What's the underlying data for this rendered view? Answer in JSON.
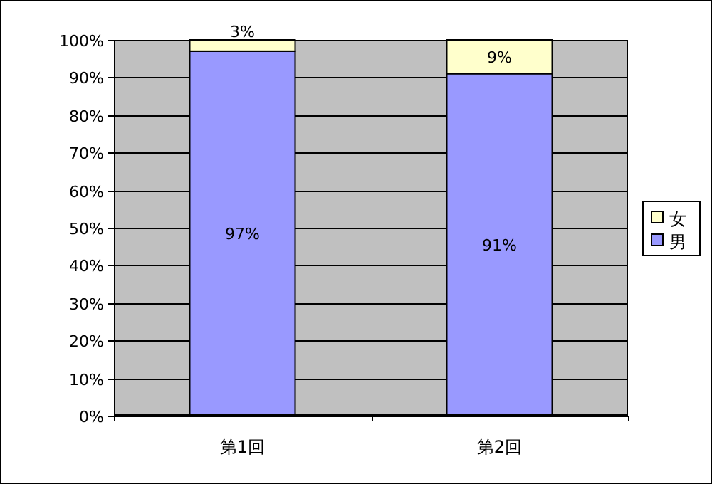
{
  "chart_data": {
    "type": "bar",
    "stacked": true,
    "categories": [
      "第1回",
      "第2回"
    ],
    "series": [
      {
        "name": "男",
        "color": "#9999ff",
        "values": [
          97,
          91
        ],
        "value_labels": [
          "97%",
          "91%"
        ]
      },
      {
        "name": "女",
        "color": "#ffffcc",
        "values": [
          3,
          9
        ],
        "value_labels": [
          "3%",
          "9%"
        ]
      }
    ],
    "ylim": [
      0,
      100
    ],
    "yticks": [
      {
        "value": 0,
        "label": "0%"
      },
      {
        "value": 10,
        "label": "10%"
      },
      {
        "value": 20,
        "label": "20%"
      },
      {
        "value": 30,
        "label": "30%"
      },
      {
        "value": 40,
        "label": "40%"
      },
      {
        "value": 50,
        "label": "50%"
      },
      {
        "value": 60,
        "label": "60%"
      },
      {
        "value": 70,
        "label": "70%"
      },
      {
        "value": 80,
        "label": "80%"
      },
      {
        "value": 90,
        "label": "90%"
      },
      {
        "value": 100,
        "label": "100%"
      }
    ],
    "grid": "y",
    "legend": "right"
  }
}
